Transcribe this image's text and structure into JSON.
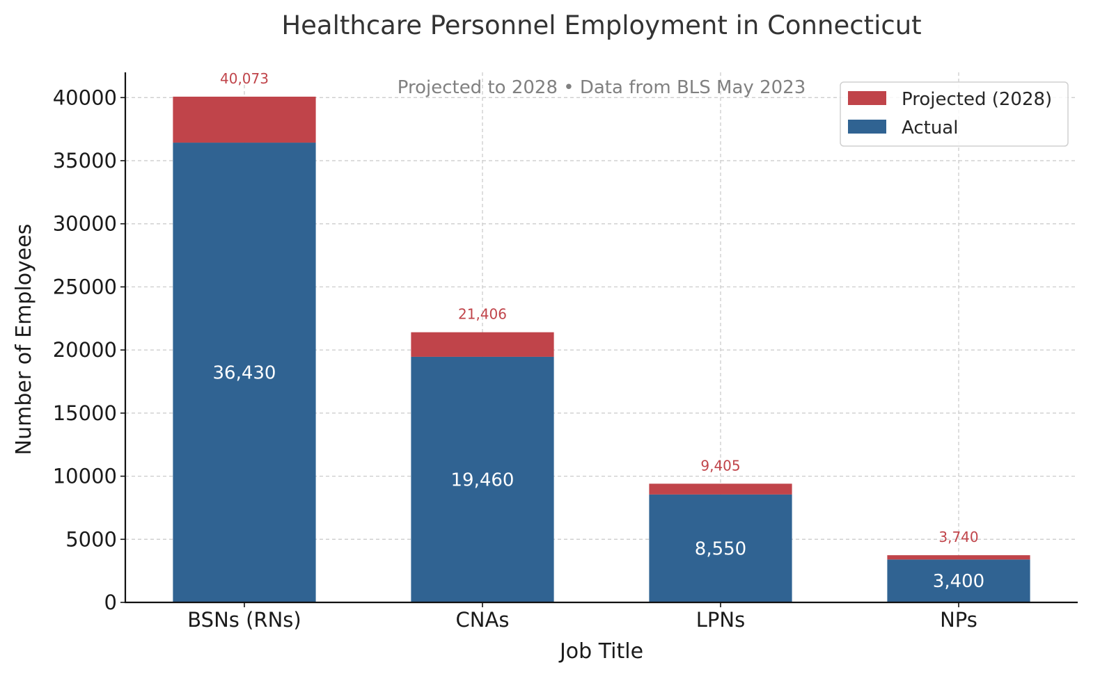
{
  "chart_data": {
    "type": "bar",
    "stacked": true,
    "title": "Healthcare Personnel Employment in Connecticut",
    "subtitle": "Projected to 2028 • Data from BLS May 2023",
    "xlabel": "Job Title",
    "ylabel": "Number of Employees",
    "categories": [
      "BSNs (RNs)",
      "CNAs",
      "LPNs",
      "NPs"
    ],
    "series": [
      {
        "name": "Actual",
        "color": "#306392",
        "values": [
          36430,
          19460,
          8550,
          3400
        ],
        "labels": [
          "36,430",
          "19,460",
          "8,550",
          "3,400"
        ]
      },
      {
        "name": "Projected (2028)",
        "color": "#c0444a",
        "totals": [
          40073,
          21406,
          9405,
          3740
        ],
        "labels": [
          "40,073",
          "21,406",
          "9,405",
          "3,740"
        ]
      }
    ],
    "ylim": [
      0,
      42000
    ],
    "yticks": [
      0,
      5000,
      10000,
      15000,
      20000,
      25000,
      30000,
      35000,
      40000
    ],
    "grid": true,
    "legend_position": "top-right"
  }
}
